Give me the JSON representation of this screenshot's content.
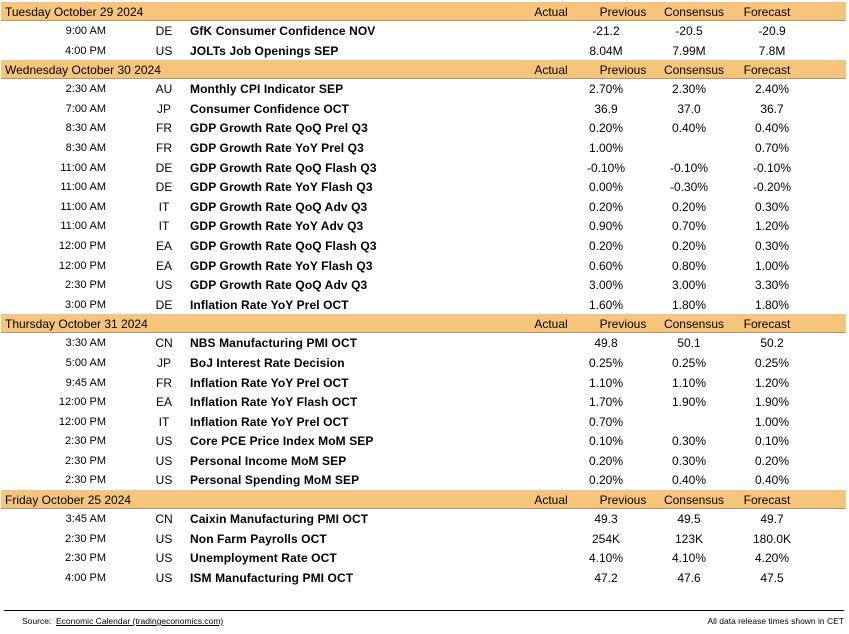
{
  "columns": {
    "actual": "Actual",
    "previous": "Previous",
    "consensus": "Consensus",
    "forecast": "Forecast"
  },
  "days": [
    {
      "title": "Tuesday October 29 2024",
      "events": [
        {
          "time": "9:00 AM",
          "country": "DE",
          "event": "GfK Consumer Confidence NOV",
          "previous": "-21.2",
          "consensus": "-20.5",
          "forecast": "-20.9"
        },
        {
          "time": "4:00 PM",
          "country": "US",
          "event": "JOLTs Job Openings SEP",
          "previous": "8.04M",
          "consensus": "7.99M",
          "forecast": "7.8M"
        }
      ]
    },
    {
      "title": "Wednesday October 30 2024",
      "events": [
        {
          "time": "2:30 AM",
          "country": "AU",
          "event": "Monthly CPI Indicator SEP",
          "previous": "2.70%",
          "consensus": "2.30%",
          "forecast": "2.40%"
        },
        {
          "time": "7:00 AM",
          "country": "JP",
          "event": "Consumer Confidence OCT",
          "previous": "36.9",
          "consensus": "37.0",
          "forecast": "36.7"
        },
        {
          "time": "8:30 AM",
          "country": "FR",
          "event": "GDP Growth Rate QoQ Prel Q3",
          "previous": "0.20%",
          "consensus": "0.40%",
          "forecast": "0.40%"
        },
        {
          "time": "8:30 AM",
          "country": "FR",
          "event": "GDP Growth Rate YoY Prel Q3",
          "previous": "1.00%",
          "consensus": "",
          "forecast": "0.70%"
        },
        {
          "time": "11:00 AM",
          "country": "DE",
          "event": "GDP Growth Rate QoQ Flash Q3",
          "previous": "-0.10%",
          "consensus": "-0.10%",
          "forecast": "-0.10%"
        },
        {
          "time": "11:00 AM",
          "country": "DE",
          "event": "GDP Growth Rate YoY Flash Q3",
          "previous": "0.00%",
          "consensus": "-0.30%",
          "forecast": "-0.20%"
        },
        {
          "time": "11:00 AM",
          "country": "IT",
          "event": "GDP Growth Rate QoQ Adv Q3",
          "previous": "0.20%",
          "consensus": "0.20%",
          "forecast": "0.30%"
        },
        {
          "time": "11:00 AM",
          "country": "IT",
          "event": "GDP Growth Rate YoY Adv Q3",
          "previous": "0.90%",
          "consensus": "0.70%",
          "forecast": "1.20%"
        },
        {
          "time": "12:00 PM",
          "country": "EA",
          "event": "GDP Growth Rate QoQ Flash Q3",
          "previous": "0.20%",
          "consensus": "0.20%",
          "forecast": "0.30%"
        },
        {
          "time": "12:00 PM",
          "country": "EA",
          "event": "GDP Growth Rate YoY Flash Q3",
          "previous": "0.60%",
          "consensus": "0.80%",
          "forecast": "1.00%"
        },
        {
          "time": "2:30 PM",
          "country": "US",
          "event": "GDP Growth Rate QoQ Adv Q3",
          "previous": "3.00%",
          "consensus": "3.00%",
          "forecast": "3.30%"
        },
        {
          "time": "3:00 PM",
          "country": "DE",
          "event": "Inflation Rate YoY Prel OCT",
          "previous": "1.60%",
          "consensus": "1.80%",
          "forecast": "1.80%"
        }
      ]
    },
    {
      "title": "Thursday October 31 2024",
      "events": [
        {
          "time": "3:30 AM",
          "country": "CN",
          "event": "NBS Manufacturing PMI OCT",
          "previous": "49.8",
          "consensus": "50.1",
          "forecast": "50.2"
        },
        {
          "time": "5:00 AM",
          "country": "JP",
          "event": "BoJ Interest Rate Decision",
          "previous": "0.25%",
          "consensus": "0.25%",
          "forecast": "0.25%"
        },
        {
          "time": "9:45 AM",
          "country": "FR",
          "event": "Inflation Rate YoY Prel OCT",
          "previous": "1.10%",
          "consensus": "1.10%",
          "forecast": "1.20%"
        },
        {
          "time": "12:00 PM",
          "country": "EA",
          "event": "Inflation Rate YoY Flash OCT",
          "previous": "1.70%",
          "consensus": "1.90%",
          "forecast": "1.90%"
        },
        {
          "time": "12:00 PM",
          "country": "IT",
          "event": "Inflation Rate YoY Prel OCT",
          "previous": "0.70%",
          "consensus": "",
          "forecast": "1.00%"
        },
        {
          "time": "2:30 PM",
          "country": "US",
          "event": "Core PCE Price Index MoM SEP",
          "previous": "0.10%",
          "consensus": "0.30%",
          "forecast": "0.10%"
        },
        {
          "time": "2:30 PM",
          "country": "US",
          "event": "Personal Income MoM SEP",
          "previous": "0.20%",
          "consensus": "0.30%",
          "forecast": "0.20%"
        },
        {
          "time": "2:30 PM",
          "country": "US",
          "event": "Personal Spending MoM SEP",
          "previous": "0.20%",
          "consensus": "0.40%",
          "forecast": "0.40%"
        }
      ]
    },
    {
      "title": "Friday October 25 2024",
      "events": [
        {
          "time": "3:45 AM",
          "country": "CN",
          "event": "Caixin Manufacturing PMI OCT",
          "previous": "49.3",
          "consensus": "49.5",
          "forecast": "49.7"
        },
        {
          "time": "2:30 PM",
          "country": "US",
          "event": "Non Farm Payrolls OCT",
          "previous": "254K",
          "consensus": "123K",
          "forecast": "180.0K"
        },
        {
          "time": "2:30 PM",
          "country": "US",
          "event": "Unemployment Rate OCT",
          "previous": "4.10%",
          "consensus": "4.10%",
          "forecast": "4.20%"
        },
        {
          "time": "4:00 PM",
          "country": "US",
          "event": "ISM Manufacturing PMI OCT",
          "previous": "47.2",
          "consensus": "47.6",
          "forecast": "47.5"
        }
      ]
    }
  ],
  "footer": {
    "source_label": "Source:",
    "source_link": "Economic Calendar (tradingeconomics.com)",
    "note": "All data release times shown in CET"
  },
  "colors": {
    "header_bg": "#f7c57a"
  }
}
